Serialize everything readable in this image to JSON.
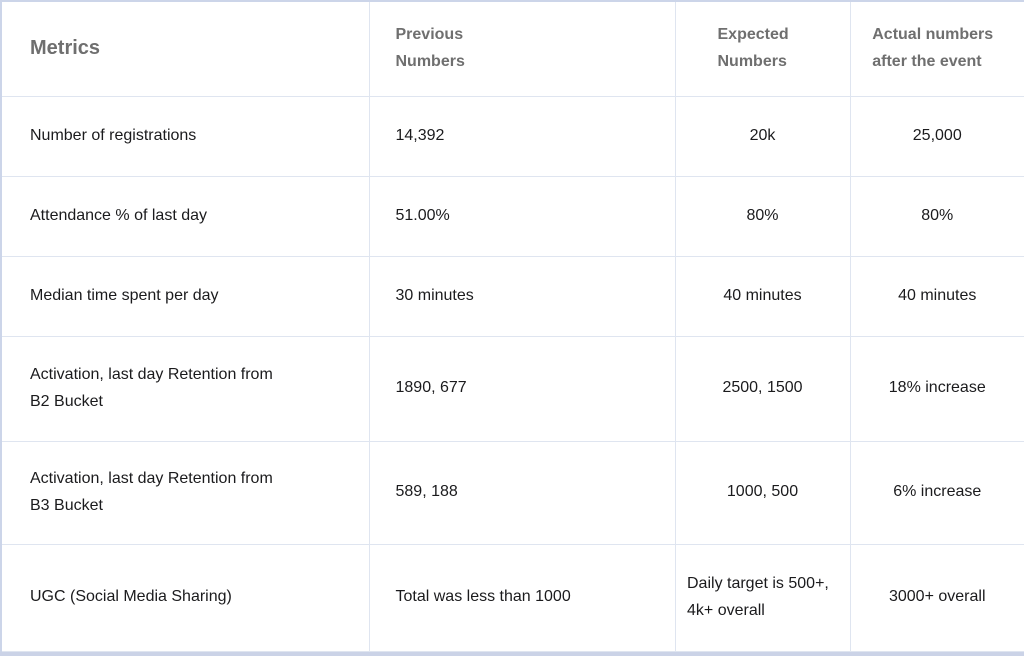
{
  "colors": {
    "background": "#ffffff",
    "header_text": "#6f6f6f",
    "body_text": "#1b1b1d",
    "grid_line": "#dfe5f0",
    "outer_border": "#ccd5e9",
    "bottom_bar": "#cbd3e7"
  },
  "table": {
    "header": {
      "metrics": "Metrics",
      "previous": "Previous Numbers",
      "expected": "Expected Numbers",
      "actual": "Actual numbers after the event"
    },
    "rows": [
      [
        "Number of registrations",
        "14,392",
        "20k",
        "25,000"
      ],
      [
        "Attendance % of last day",
        "51.00%",
        "80%",
        "80%"
      ],
      [
        "Median time spent per day",
        "30 minutes",
        "40 minutes",
        "40 minutes"
      ],
      [
        "Activation, last day Retention from B2 Bucket",
        "1890, 677",
        "2500, 1500",
        "18% increase"
      ],
      [
        "Activation, last day Retention from B3 Bucket",
        "589, 188",
        "1000, 500",
        "6% increase"
      ],
      [
        "UGC (Social Media Sharing)",
        "Total was less than 1000",
        "Daily target is 500+, 4k+ overall",
        "3000+ overall"
      ]
    ]
  }
}
